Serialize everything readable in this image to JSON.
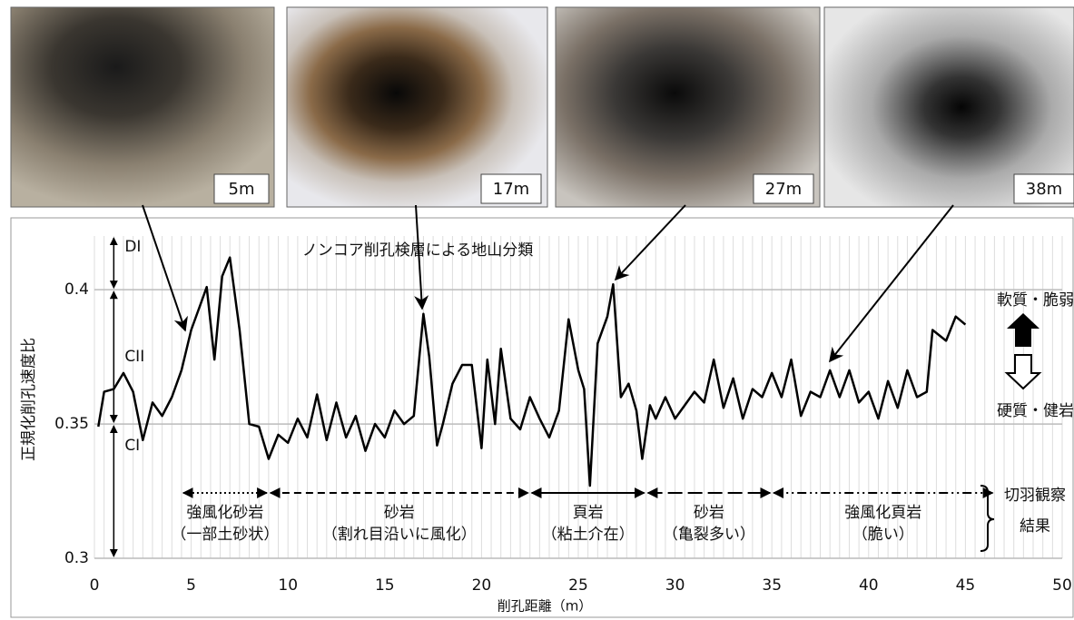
{
  "photos": [
    "5m",
    "17m",
    "27m",
    "38m"
  ],
  "chart_data": {
    "type": "line",
    "annotation": "ノンコア削孔検層による地山分類",
    "x_label": "削孔距離（m）",
    "y_label": "正規化削孔速度比",
    "xlim": [
      0,
      50
    ],
    "ylim": [
      0.3,
      0.42
    ],
    "xticks": [
      0,
      5,
      10,
      15,
      20,
      25,
      30,
      35,
      40,
      45,
      50
    ],
    "yticks": [
      0.3,
      0.35,
      0.4
    ],
    "grid": true,
    "x": [
      0.2,
      0.5,
      1,
      1.5,
      2,
      2.5,
      3,
      3.5,
      4,
      4.5,
      5,
      5.5,
      5.8,
      6.2,
      6.6,
      7,
      7.5,
      8,
      8.5,
      9,
      9.5,
      10,
      10.5,
      11,
      11.5,
      12,
      12.5,
      13,
      13.5,
      14,
      14.5,
      15,
      15.5,
      16,
      16.5,
      17,
      17.3,
      17.7,
      18,
      18.5,
      19,
      19.5,
      20,
      20.3,
      20.7,
      21,
      21.5,
      22,
      22.5,
      23,
      23.5,
      24,
      24.5,
      25,
      25.3,
      25.6,
      26,
      26.5,
      26.8,
      27.2,
      27.6,
      28,
      28.3,
      28.7,
      29,
      29.5,
      30,
      30.5,
      31,
      31.5,
      32,
      32.5,
      33,
      33.5,
      34,
      34.5,
      35,
      35.5,
      36,
      36.5,
      37,
      37.5,
      38,
      38.5,
      39,
      39.5,
      40,
      40.5,
      41,
      41.5,
      42,
      42.5,
      43,
      43.3,
      44,
      44.5,
      45
    ],
    "series": [
      {
        "color": "#000000",
        "values": [
          0.349,
          0.362,
          0.363,
          0.369,
          0.362,
          0.344,
          0.358,
          0.353,
          0.36,
          0.37,
          0.385,
          0.395,
          0.401,
          0.374,
          0.405,
          0.412,
          0.385,
          0.35,
          0.349,
          0.337,
          0.346,
          0.343,
          0.352,
          0.345,
          0.361,
          0.344,
          0.358,
          0.345,
          0.353,
          0.34,
          0.35,
          0.345,
          0.355,
          0.35,
          0.353,
          0.391,
          0.375,
          0.342,
          0.35,
          0.365,
          0.372,
          0.372,
          0.341,
          0.374,
          0.35,
          0.378,
          0.352,
          0.348,
          0.36,
          0.352,
          0.345,
          0.355,
          0.389,
          0.37,
          0.363,
          0.327,
          0.38,
          0.39,
          0.402,
          0.36,
          0.365,
          0.355,
          0.337,
          0.357,
          0.352,
          0.36,
          0.352,
          0.357,
          0.362,
          0.358,
          0.374,
          0.356,
          0.367,
          0.352,
          0.363,
          0.36,
          0.369,
          0.36,
          0.374,
          0.353,
          0.362,
          0.36,
          0.37,
          0.36,
          0.37,
          0.358,
          0.362,
          0.352,
          0.366,
          0.356,
          0.37,
          0.36,
          0.362,
          0.385,
          0.381,
          0.39,
          0.387
        ]
      }
    ],
    "zones": [
      {
        "label": "DI",
        "range": [
          0.4,
          0.42
        ]
      },
      {
        "label": "CII",
        "range": [
          0.35,
          0.4
        ]
      },
      {
        "label": "CI",
        "range": [
          0.3,
          0.35
        ]
      }
    ],
    "soft_label": "軟質・脆弱",
    "hard_label": "硬質・健岩",
    "sections": [
      {
        "label": "強風化砂岩",
        "sublabel": "（一部土砂状）",
        "range": [
          4.5,
          9
        ],
        "style": "dotted"
      },
      {
        "label": "砂岩",
        "sublabel": "（割れ目沿いに風化）",
        "range": [
          9,
          22.5
        ],
        "style": "dashed"
      },
      {
        "label": "頁岩",
        "sublabel": "（粘土介在）",
        "range": [
          22.5,
          28.5
        ],
        "style": "solid"
      },
      {
        "label": "砂岩",
        "sublabel": "（亀裂多い）",
        "range": [
          28.5,
          35
        ],
        "style": "long-dash"
      },
      {
        "label": "強風化頁岩",
        "sublabel": "（脆い）",
        "range": [
          35,
          46.5
        ],
        "style": "dash-dot"
      }
    ],
    "section_title": [
      "切羽観察",
      "結果"
    ]
  }
}
